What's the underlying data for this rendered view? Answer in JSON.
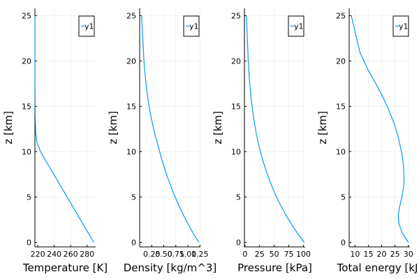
{
  "colors": {
    "series": "#009AFA",
    "grid": "#EBEBEB",
    "axis": "#000000"
  },
  "chart_data": [
    {
      "type": "line",
      "xlabel": "Temperature [K]",
      "ylabel": "z [km]",
      "xticks": [
        220,
        240,
        260,
        280
      ],
      "yticks": [
        0,
        5,
        10,
        15,
        20,
        25
      ],
      "xlim": [
        216.5,
        290.5
      ],
      "ylim": [
        -0.5,
        25.8
      ],
      "legend": "top-right",
      "grid": true,
      "series": [
        {
          "name": "y1",
          "x": [
            288.2,
            281.7,
            275.2,
            268.7,
            262.2,
            255.7,
            249.2,
            242.7,
            236.2,
            229.7,
            223.3,
            219.0,
            217.5,
            216.9,
            216.7,
            216.6,
            216.6,
            216.6
          ],
          "y": [
            0,
            1,
            2,
            3,
            4,
            5,
            6,
            7,
            8,
            9,
            10,
            11,
            12,
            14,
            16,
            18,
            20,
            25
          ]
        }
      ]
    },
    {
      "type": "line",
      "xlabel": "Density [kg/m^3]",
      "ylabel": "z [km]",
      "xticks": [
        0.25,
        0.5,
        0.75,
        1.0,
        1.25
      ],
      "xticklabels": [
        "0.25",
        "0.50",
        "0.75",
        "1.00",
        "1.25"
      ],
      "yticks": [
        0,
        5,
        10,
        15,
        20,
        25
      ],
      "xlim": [
        0.0,
        1.26
      ],
      "ylim": [
        -0.5,
        25.8
      ],
      "legend": "top-right",
      "grid": true,
      "series": [
        {
          "name": "y1",
          "x": [
            1.225,
            1.112,
            1.007,
            0.909,
            0.819,
            0.736,
            0.66,
            0.59,
            0.526,
            0.467,
            0.414,
            0.365,
            0.312,
            0.228,
            0.166,
            0.121,
            0.088,
            0.04
          ],
          "y": [
            0,
            1,
            2,
            3,
            4,
            5,
            6,
            7,
            8,
            9,
            10,
            11,
            12,
            14,
            16,
            18,
            20,
            25
          ]
        }
      ]
    },
    {
      "type": "line",
      "xlabel": "Pressure [kPa]",
      "ylabel": "z [km]",
      "xticks": [
        0,
        25,
        50,
        75,
        100
      ],
      "yticks": [
        0,
        5,
        10,
        15,
        20,
        25
      ],
      "xlim": [
        -1.0,
        103.0
      ],
      "ylim": [
        -0.5,
        25.8
      ],
      "legend": "top-right",
      "grid": true,
      "series": [
        {
          "name": "y1",
          "x": [
            101.3,
            89.9,
            79.5,
            70.1,
            61.6,
            54.0,
            47.2,
            41.1,
            35.6,
            30.7,
            26.4,
            22.6,
            19.3,
            14.1,
            10.3,
            7.5,
            5.5,
            2.5
          ],
          "y": [
            0,
            1,
            2,
            3,
            4,
            5,
            6,
            7,
            8,
            9,
            10,
            11,
            12,
            14,
            16,
            18,
            20,
            25
          ]
        }
      ]
    },
    {
      "type": "line",
      "xlabel": "Total energy [kJ]",
      "ylabel": "z [km]",
      "xticks": [
        10,
        15,
        20,
        25,
        30
      ],
      "yticks": [
        0,
        5,
        10,
        15,
        20,
        25
      ],
      "xlim": [
        7.8,
        30.6
      ],
      "ylim": [
        -0.5,
        25.8
      ],
      "legend": "top-right",
      "grid": true,
      "series": [
        {
          "name": "y1",
          "x": [
            30.0,
            27.8,
            26.5,
            26.2,
            26.8,
            27.6,
            28.2,
            28.4,
            28.3,
            28.0,
            27.4,
            26.3,
            24.8,
            22.8,
            20.5,
            17.8,
            14.9,
            11.8,
            8.6
          ],
          "y": [
            0,
            1,
            2,
            3,
            4,
            5,
            6,
            7,
            8,
            9,
            10,
            11.5,
            13,
            14.5,
            16,
            17.5,
            19,
            21,
            25
          ]
        }
      ]
    }
  ]
}
